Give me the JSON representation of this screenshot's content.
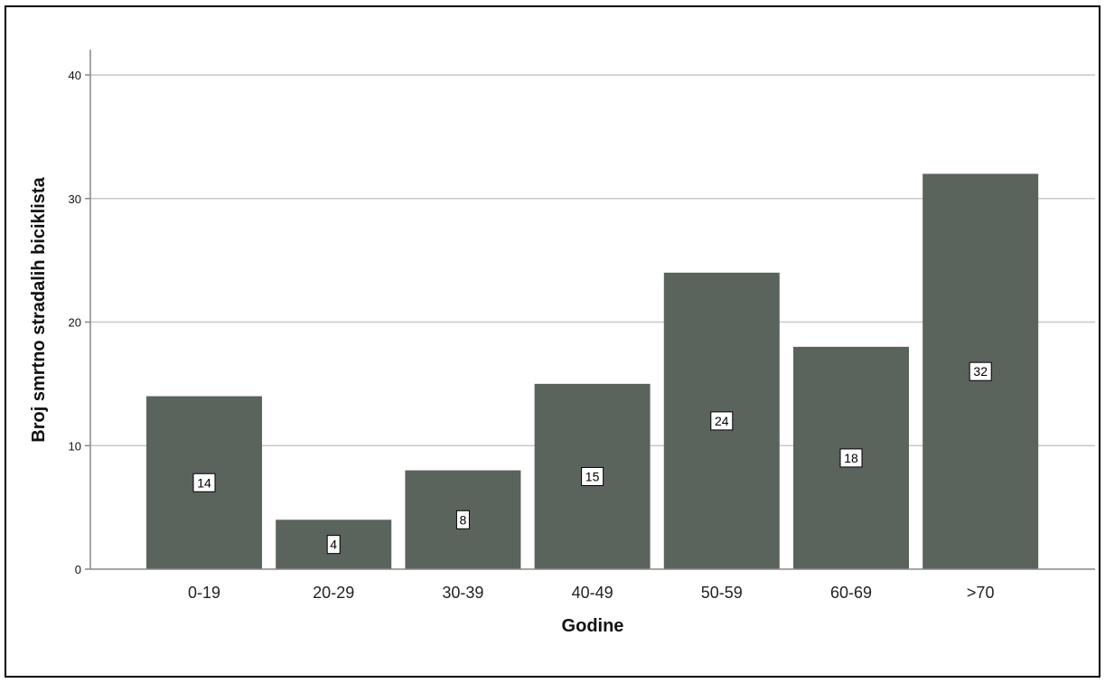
{
  "chart_data": {
    "type": "bar",
    "categories": [
      "0-19",
      "20-29",
      "30-39",
      "40-49",
      "50-59",
      "60-69",
      ">70"
    ],
    "values": [
      14,
      4,
      8,
      15,
      24,
      18,
      32
    ],
    "data_labels": [
      "14",
      "4",
      "8",
      "15",
      "24",
      "18",
      "32"
    ],
    "xlabel": "Godine",
    "ylabel": "Broj smrtno stradalih biciklista",
    "ylim": [
      0,
      40
    ],
    "yticks": [
      0,
      10,
      20,
      30,
      40
    ],
    "grid": true,
    "legend": "none",
    "bar_color": "#5b645c",
    "grid_color": "#c8c8c8",
    "axis_color": "#888888"
  }
}
